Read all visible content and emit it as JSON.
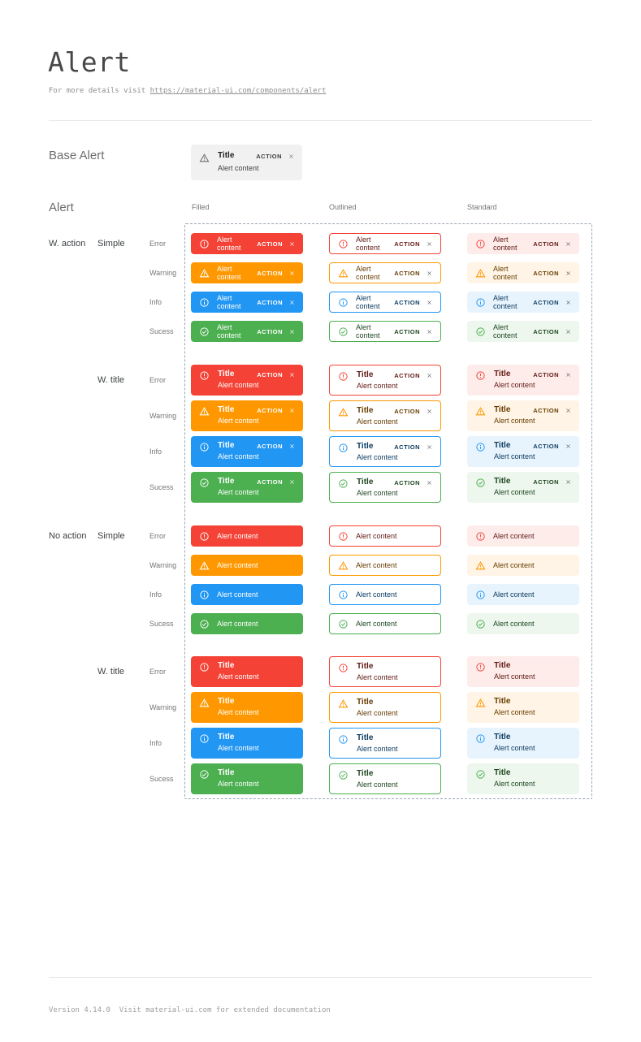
{
  "page": {
    "title": "Alert",
    "subtitle_prefix": "For more details visit ",
    "subtitle_link": "https://material-ui.com/components/alert",
    "footer": "Version 4.14.0  Visit material-ui.com for extended documentation"
  },
  "base_alert_section": {
    "label": "Base Alert",
    "alert": {
      "icon": "warning-icon",
      "title": "Title",
      "content": "Alert content",
      "action_label": "ACTION",
      "close_icon": "close-icon",
      "background": "#f1f1f1"
    }
  },
  "alert_section": {
    "label": "Alert",
    "column_headers": [
      "Filled",
      "Outlined",
      "Standard"
    ],
    "alert_text": {
      "title": "Title",
      "content": "Alert content",
      "action_label": "ACTION"
    },
    "groups": [
      {
        "label": "W. action",
        "subgroups": [
          {
            "label": "Simple",
            "with_title": false,
            "with_action": true,
            "rows": [
              "Error",
              "Warning",
              "Info",
              "Sucess"
            ]
          },
          {
            "label": "W. title",
            "with_title": true,
            "with_action": true,
            "rows": [
              "Error",
              "Warning",
              "Info",
              "Sucess"
            ]
          }
        ]
      },
      {
        "label": "No action",
        "subgroups": [
          {
            "label": "Simple",
            "with_title": false,
            "with_action": false,
            "rows": [
              "Error",
              "Warning",
              "Info",
              "Sucess"
            ]
          },
          {
            "label": "W. title",
            "with_title": true,
            "with_action": false,
            "rows": [
              "Error",
              "Warning",
              "Info",
              "Sucess"
            ]
          }
        ]
      }
    ],
    "severity_styles": {
      "Error": {
        "icon": "error-icon",
        "main": "#f44336",
        "standard_bg": "#fdecea",
        "dark_text": "#611a15"
      },
      "Warning": {
        "icon": "warning-icon",
        "main": "#ff9800",
        "standard_bg": "#fff4e5",
        "dark_text": "#663c00"
      },
      "Info": {
        "icon": "info-icon",
        "main": "#2196f3",
        "standard_bg": "#e8f4fd",
        "dark_text": "#0d3c61"
      },
      "Sucess": {
        "icon": "success-icon",
        "main": "#4caf50",
        "standard_bg": "#edf7ed",
        "dark_text": "#1e4620"
      }
    },
    "frame_border_color": "#9aa5b2"
  }
}
